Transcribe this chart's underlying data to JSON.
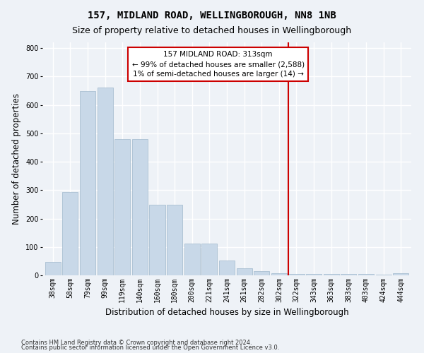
{
  "title": "157, MIDLAND ROAD, WELLINGBOROUGH, NN8 1NB",
  "subtitle": "Size of property relative to detached houses in Wellingborough",
  "xlabel": "Distribution of detached houses by size in Wellingborough",
  "ylabel": "Number of detached properties",
  "footnote1": "Contains HM Land Registry data © Crown copyright and database right 2024.",
  "footnote2": "Contains public sector information licensed under the Open Government Licence v3.0.",
  "categories": [
    "38sqm",
    "58sqm",
    "79sqm",
    "99sqm",
    "119sqm",
    "140sqm",
    "160sqm",
    "180sqm",
    "200sqm",
    "221sqm",
    "241sqm",
    "261sqm",
    "282sqm",
    "302sqm",
    "322sqm",
    "343sqm",
    "363sqm",
    "383sqm",
    "403sqm",
    "424sqm",
    "444sqm"
  ],
  "bar_heights": [
    46,
    293,
    648,
    660,
    479,
    479,
    248,
    248,
    113,
    113,
    52,
    25,
    15,
    8,
    6,
    6,
    4,
    4,
    4,
    2,
    7
  ],
  "bar_color": "#c8d8e8",
  "bar_edge_color": "#a0b8cc",
  "vline_color": "#cc0000",
  "annotation_text": "157 MIDLAND ROAD: 313sqm\n← 99% of detached houses are smaller (2,588)\n1% of semi-detached houses are larger (14) →",
  "annotation_box_color": "#cc0000",
  "ylim": [
    0,
    820
  ],
  "yticks": [
    0,
    100,
    200,
    300,
    400,
    500,
    600,
    700,
    800
  ],
  "background_color": "#eef2f7",
  "grid_color": "#ffffff",
  "title_fontsize": 10,
  "subtitle_fontsize": 9,
  "axis_label_fontsize": 8.5,
  "tick_fontsize": 7,
  "annotation_fontsize": 7.5,
  "footnote_fontsize": 6
}
